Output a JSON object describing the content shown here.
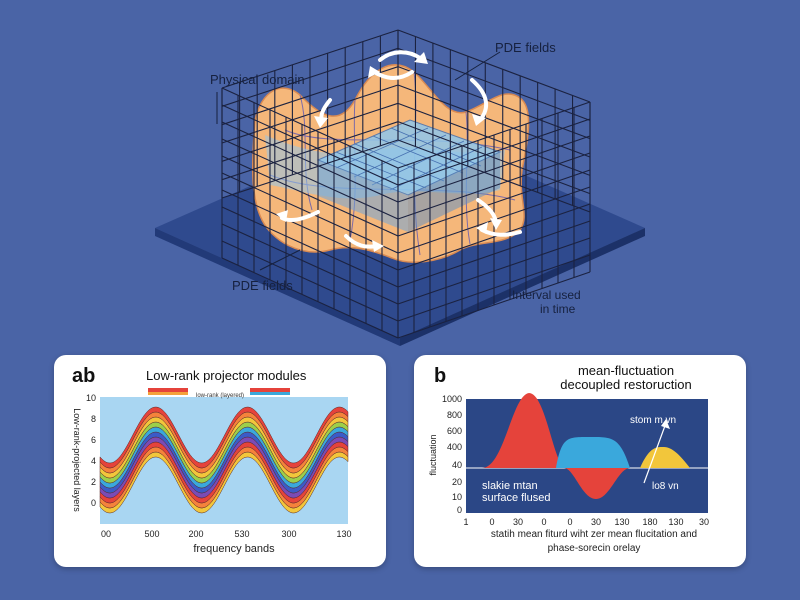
{
  "scene": {
    "label_physical_domain": "Physical domain",
    "label_pde_fields_top": "PDE fields",
    "label_pde_fields_bottom": "PDE fields",
    "label_time_line1": "Interval used",
    "label_time_line2": "in time"
  },
  "panel_a": {
    "letter": "ab",
    "title": "Low-rank projector modules",
    "legend_text": "low-rank (layered)",
    "ylabel": "Low-rank-projected layers",
    "xlabel": "frequency bands",
    "y_ticks": [
      "10",
      "8",
      "6",
      "4",
      "2",
      "0"
    ],
    "x_ticks": [
      "00",
      "500",
      "200",
      "530",
      "300",
      "130"
    ]
  },
  "panel_b": {
    "letter": "b",
    "title_line1": "mean-fluctuation",
    "title_line2": "decoupled restoruction",
    "ylabel": "fluctuation",
    "y_ticks": [
      "1000",
      "800",
      "600",
      "400",
      "40",
      "20",
      "10",
      "0"
    ],
    "x_ticks": [
      "1",
      "0",
      "30",
      "0",
      "0",
      "30",
      "130",
      "180",
      "130",
      "30"
    ],
    "annotation_top": "stom m   vn",
    "annotation_low": "lo8 vn",
    "inner_line1": "slakie mtan",
    "inner_line2": "surface flused",
    "caption_line1": "statih mean fiturd wiht zer mean flucitation and",
    "caption_line2": "phase-sorecin orelay"
  },
  "colors": {
    "background": "#4a64a6",
    "grid": "#1b2240",
    "surface_orange": "#f5b77a",
    "surface_blue": "#8fc7ec",
    "plot_b_bg": "#2b4786",
    "red": "#e5433b",
    "blue": "#3aa8dc",
    "yellow": "#f2c63b"
  }
}
